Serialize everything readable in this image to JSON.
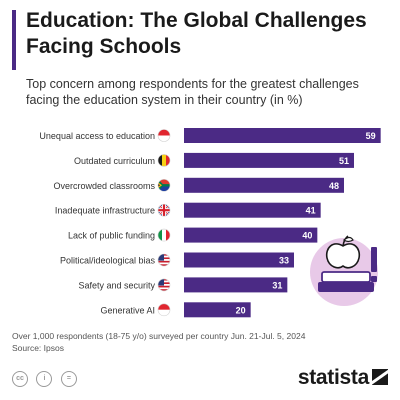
{
  "title": "Education: The Global Challenges Facing Schools",
  "subtitle": "Top concern among respondents for the greatest challenges facing the education system in their country (in %)",
  "footnote": "Over 1,000 respondents (18-75 y/o) surveyed per country Jun. 21-Jul. 5, 2024",
  "source": "Source: Ipsos",
  "brand": "statista",
  "colors": {
    "bar": "#4b2a85",
    "accent": "#4b2a85",
    "illustration": "#e8c9e8",
    "value_text": "#ffffff"
  },
  "license_icons": [
    "cc-icon",
    "by-icon",
    "equal-icon"
  ],
  "chart_data": {
    "type": "bar",
    "orientation": "horizontal",
    "title": "Education: The Global Challenges Facing Schools",
    "categories": [
      "Unequal access to education",
      "Outdated curriculum",
      "Overcrowded classrooms",
      "Inadequate infrastructure",
      "Lack of public funding",
      "Political/ideological bias",
      "Safety and security",
      "Generative AI"
    ],
    "values": [
      59,
      51,
      48,
      41,
      40,
      33,
      31,
      20
    ],
    "flags": [
      "indonesia",
      "belgium",
      "south-africa",
      "great-britain",
      "italy",
      "united-states",
      "united-states",
      "singapore"
    ],
    "xlim": [
      0,
      60
    ],
    "grid": false,
    "legend": "none"
  }
}
